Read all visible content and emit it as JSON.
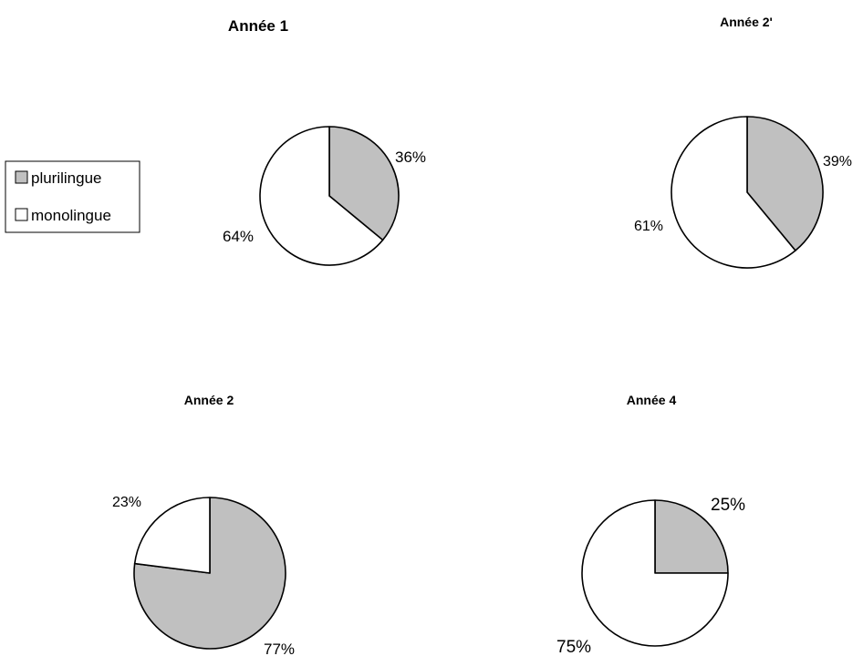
{
  "colors": {
    "plurilingue": "#c0c0c0",
    "monolingue": "#ffffff",
    "stroke": "#000000"
  },
  "legend": {
    "items": [
      {
        "label": "plurilingue",
        "color": "#c0c0c0"
      },
      {
        "label": "monolingue",
        "color": "#ffffff"
      }
    ]
  },
  "chart_data": [
    {
      "type": "pie",
      "title": "Année 1",
      "slices": [
        {
          "name": "plurilingue",
          "value": 36,
          "label": "36%"
        },
        {
          "name": "monolingue",
          "value": 64,
          "label": "64%"
        }
      ]
    },
    {
      "type": "pie",
      "title": "Année 2'",
      "slices": [
        {
          "name": "plurilingue",
          "value": 39,
          "label": "39%"
        },
        {
          "name": "monolingue",
          "value": 61,
          "label": "61%"
        }
      ]
    },
    {
      "type": "pie",
      "title": "Année 2",
      "slices": [
        {
          "name": "plurilingue",
          "value": 77,
          "label": "77%"
        },
        {
          "name": "monolingue",
          "value": 23,
          "label": "23%"
        }
      ]
    },
    {
      "type": "pie",
      "title": "Année  4",
      "slices": [
        {
          "name": "plurilingue",
          "value": 25,
          "label": "25%"
        },
        {
          "name": "monolingue",
          "value": 75,
          "label": "75%"
        }
      ]
    }
  ]
}
